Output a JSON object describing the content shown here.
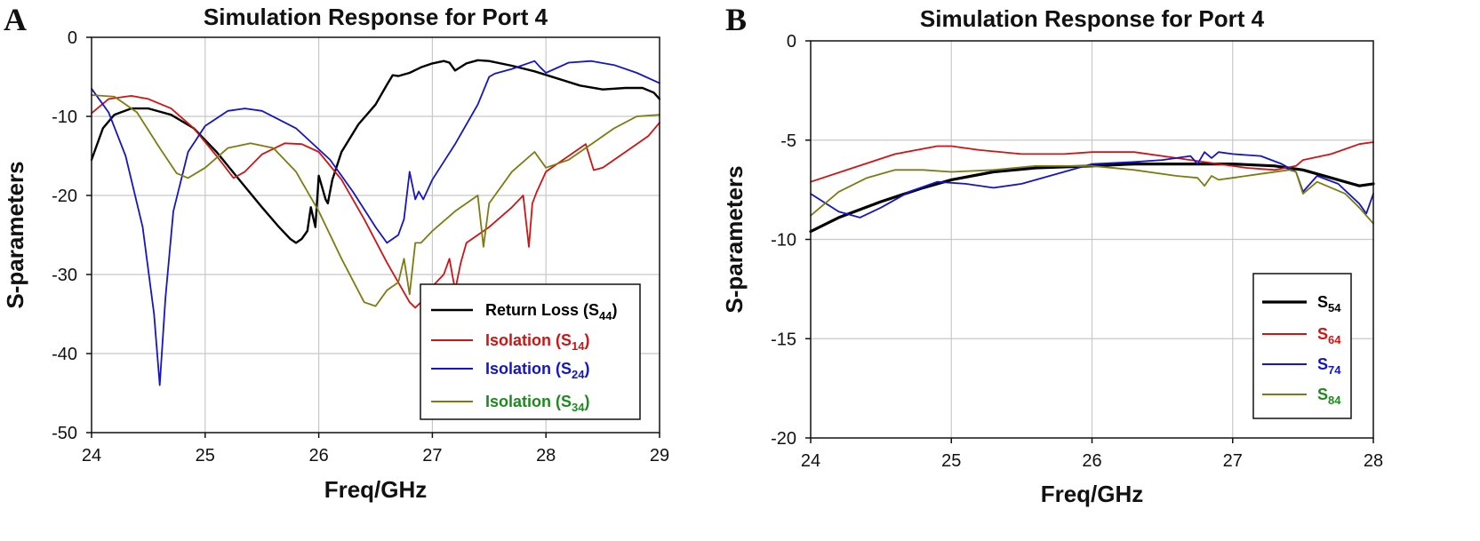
{
  "chart_data": [
    {
      "panel": "A",
      "type": "line",
      "title": "Simulation Response for Port 4",
      "xlabel": "Freq/GHz",
      "ylabel": "S-parameters",
      "xlim": [
        24,
        29
      ],
      "ylim": [
        -50,
        0
      ],
      "xticks": [
        24,
        25,
        26,
        27,
        28,
        29
      ],
      "yticks": [
        0,
        -10,
        -20,
        -30,
        -40,
        -50
      ],
      "grid": true,
      "legend_position": "bottom-right",
      "series": [
        {
          "name": "Return Loss (S44)",
          "label_main": "Return Loss (S",
          "label_sub": "44",
          "label_end": ")",
          "color": "#000000",
          "width": 2.4,
          "x": [
            24,
            24.1,
            24.2,
            24.35,
            24.5,
            24.7,
            24.9,
            25.1,
            25.3,
            25.5,
            25.65,
            25.75,
            25.8,
            25.85,
            25.9,
            25.93,
            25.97,
            26.0,
            26.02,
            26.06,
            26.08,
            26.12,
            26.2,
            26.35,
            26.5,
            26.6,
            26.65,
            26.7,
            26.8,
            26.9,
            27.0,
            27.1,
            27.15,
            27.2,
            27.3,
            27.4,
            27.5,
            27.7,
            27.9,
            28.1,
            28.3,
            28.5,
            28.7,
            28.85,
            28.95,
            29
          ],
          "y": [
            -15.5,
            -11.5,
            -9.8,
            -9.0,
            -9.0,
            -9.8,
            -11.5,
            -14.5,
            -18.0,
            -21.5,
            -24.0,
            -25.5,
            -26.0,
            -25.5,
            -24.5,
            -21.5,
            -24.0,
            -17.5,
            -18.5,
            -20.5,
            -21.0,
            -18.0,
            -14.5,
            -11.0,
            -8.5,
            -6.0,
            -4.8,
            -4.9,
            -4.5,
            -3.8,
            -3.3,
            -3.0,
            -3.2,
            -4.2,
            -3.3,
            -2.9,
            -3.0,
            -3.6,
            -4.3,
            -5.2,
            -6.1,
            -6.6,
            -6.4,
            -6.4,
            -7.0,
            -7.8
          ]
        },
        {
          "name": "Isolation (S14)",
          "label_main": "Isolation (S",
          "label_sub": "14",
          "label_end": ")",
          "color": "#d01414",
          "width": 1.8,
          "x": [
            24,
            24.15,
            24.35,
            24.5,
            24.7,
            24.9,
            25.1,
            25.25,
            25.35,
            25.5,
            25.7,
            25.85,
            26.0,
            26.2,
            26.4,
            26.6,
            26.8,
            26.85,
            26.9,
            27.0,
            27.1,
            27.15,
            27.2,
            27.25,
            27.3,
            27.5,
            27.7,
            27.8,
            27.85,
            27.88,
            27.92,
            28.0,
            28.2,
            28.35,
            28.42,
            28.5,
            28.7,
            28.9,
            29
          ],
          "y": [
            -9.6,
            -7.8,
            -7.4,
            -7.8,
            -9.0,
            -11.5,
            -15.0,
            -17.8,
            -17.0,
            -14.8,
            -13.4,
            -13.5,
            -14.5,
            -18.0,
            -23.0,
            -28.5,
            -33.5,
            -34.2,
            -33.5,
            -31.5,
            -30.0,
            -28.0,
            -32.0,
            -28.5,
            -26.0,
            -24.0,
            -21.5,
            -20.0,
            -26.5,
            -21.0,
            -19.5,
            -17.0,
            -15.0,
            -13.5,
            -16.8,
            -16.5,
            -14.5,
            -12.5,
            -10.8
          ]
        },
        {
          "name": "Isolation (S24)",
          "label_main": "Isolation (S",
          "label_sub": "24",
          "label_end": ")",
          "color": "#1414c8",
          "width": 1.8,
          "x": [
            24,
            24.15,
            24.3,
            24.45,
            24.55,
            24.6,
            24.65,
            24.72,
            24.85,
            25.0,
            25.2,
            25.35,
            25.5,
            25.8,
            26.1,
            26.3,
            26.5,
            26.6,
            26.7,
            26.75,
            26.8,
            26.85,
            26.88,
            26.92,
            27.0,
            27.2,
            27.4,
            27.5,
            27.55,
            27.7,
            27.9,
            27.95,
            28.0,
            28.2,
            28.4,
            28.6,
            28.8,
            29
          ],
          "y": [
            -6.5,
            -9.5,
            -15.0,
            -24.0,
            -35.0,
            -44.0,
            -33.0,
            -22.0,
            -14.5,
            -11.2,
            -9.3,
            -9.0,
            -9.3,
            -11.5,
            -15.5,
            -19.5,
            -24.0,
            -26.0,
            -25.0,
            -23.0,
            -17.0,
            -20.5,
            -19.5,
            -20.5,
            -18.0,
            -13.5,
            -8.5,
            -5.0,
            -4.6,
            -4.0,
            -3.0,
            -3.8,
            -4.5,
            -3.2,
            -3.0,
            -3.5,
            -4.5,
            -5.8
          ]
        },
        {
          "name": "Isolation (S34)",
          "label_main": "Isolation (S",
          "label_sub": "34",
          "label_end": ")",
          "color": "#7c7c10",
          "width": 1.8,
          "x": [
            24,
            24.2,
            24.4,
            24.6,
            24.75,
            24.85,
            25.0,
            25.2,
            25.4,
            25.6,
            25.8,
            26.0,
            26.2,
            26.4,
            26.5,
            26.6,
            26.7,
            26.75,
            26.8,
            26.85,
            26.9,
            27.0,
            27.2,
            27.4,
            27.45,
            27.5,
            27.7,
            27.9,
            28.0,
            28.2,
            28.4,
            28.6,
            28.8,
            29
          ],
          "y": [
            -7.3,
            -7.5,
            -9.5,
            -14.0,
            -17.2,
            -17.8,
            -16.5,
            -14.0,
            -13.4,
            -14.0,
            -17.0,
            -22.0,
            -28.0,
            -33.5,
            -34.0,
            -32.0,
            -31.0,
            -28.0,
            -32.5,
            -26.0,
            -26.0,
            -24.5,
            -22.0,
            -20.0,
            -26.5,
            -21.0,
            -17.0,
            -14.5,
            -16.5,
            -15.5,
            -13.5,
            -11.5,
            -10.0,
            -9.8
          ]
        }
      ]
    },
    {
      "panel": "B",
      "type": "line",
      "title": "Simulation Response for Port 4",
      "xlabel": "Freq/GHz",
      "ylabel": "S-parameters",
      "xlim": [
        24,
        28
      ],
      "ylim": [
        -20,
        0
      ],
      "xticks": [
        24,
        25,
        26,
        27,
        28
      ],
      "yticks": [
        0,
        -5,
        -10,
        -15,
        -20
      ],
      "grid": true,
      "legend_position": "bottom-right",
      "series": [
        {
          "name": "S54",
          "label_main": "S",
          "label_sub": "54",
          "label_end": "",
          "color": "#000000",
          "width": 3.2,
          "x": [
            24,
            24.2,
            24.5,
            24.8,
            25.0,
            25.3,
            25.6,
            26.0,
            26.3,
            26.6,
            27.0,
            27.3,
            27.5,
            27.7,
            27.9,
            28
          ],
          "y": [
            -9.6,
            -8.9,
            -8.1,
            -7.4,
            -7.0,
            -6.6,
            -6.4,
            -6.3,
            -6.2,
            -6.2,
            -6.2,
            -6.3,
            -6.5,
            -6.9,
            -7.3,
            -7.2
          ]
        },
        {
          "name": "S64",
          "label_main": "S",
          "label_sub": "64",
          "label_end": "",
          "color": "#d01414",
          "width": 1.8,
          "x": [
            24,
            24.3,
            24.6,
            24.9,
            25.0,
            25.2,
            25.5,
            25.8,
            26.0,
            26.3,
            26.6,
            26.9,
            27.1,
            27.3,
            27.45,
            27.5,
            27.7,
            27.9,
            28
          ],
          "y": [
            -7.1,
            -6.4,
            -5.7,
            -5.3,
            -5.3,
            -5.5,
            -5.7,
            -5.7,
            -5.6,
            -5.6,
            -5.9,
            -6.2,
            -6.4,
            -6.5,
            -6.3,
            -6.0,
            -5.7,
            -5.2,
            -5.1
          ]
        },
        {
          "name": "S74",
          "label_main": "S",
          "label_sub": "74",
          "label_end": "",
          "color": "#1414c8",
          "width": 1.8,
          "x": [
            24,
            24.2,
            24.35,
            24.5,
            24.7,
            24.9,
            25.1,
            25.3,
            25.5,
            25.8,
            26.0,
            26.3,
            26.5,
            26.7,
            26.75,
            26.8,
            26.85,
            26.9,
            27.0,
            27.2,
            27.35,
            27.45,
            27.5,
            27.6,
            27.75,
            27.9,
            27.95,
            28
          ],
          "y": [
            -7.7,
            -8.6,
            -8.9,
            -8.4,
            -7.6,
            -7.1,
            -7.2,
            -7.4,
            -7.2,
            -6.6,
            -6.2,
            -6.1,
            -6.0,
            -5.8,
            -6.2,
            -5.6,
            -5.9,
            -5.6,
            -5.7,
            -5.8,
            -6.2,
            -6.6,
            -7.6,
            -6.8,
            -7.2,
            -8.2,
            -8.7,
            -7.7
          ]
        },
        {
          "name": "S84",
          "label_main": "S",
          "label_sub": "84",
          "label_end": "",
          "color": "#7c7c10",
          "width": 1.8,
          "x": [
            24,
            24.2,
            24.4,
            24.6,
            24.8,
            25.0,
            25.3,
            25.6,
            26.0,
            26.3,
            26.6,
            26.75,
            26.8,
            26.85,
            26.9,
            27.0,
            27.2,
            27.4,
            27.45,
            27.5,
            27.6,
            27.8,
            27.9,
            27.95,
            28
          ],
          "y": [
            -8.8,
            -7.6,
            -6.9,
            -6.5,
            -6.5,
            -6.6,
            -6.5,
            -6.3,
            -6.3,
            -6.5,
            -6.8,
            -6.9,
            -7.3,
            -6.8,
            -7.0,
            -6.9,
            -6.7,
            -6.5,
            -6.6,
            -7.7,
            -7.1,
            -7.7,
            -8.4,
            -8.8,
            -9.2
          ]
        }
      ]
    }
  ]
}
